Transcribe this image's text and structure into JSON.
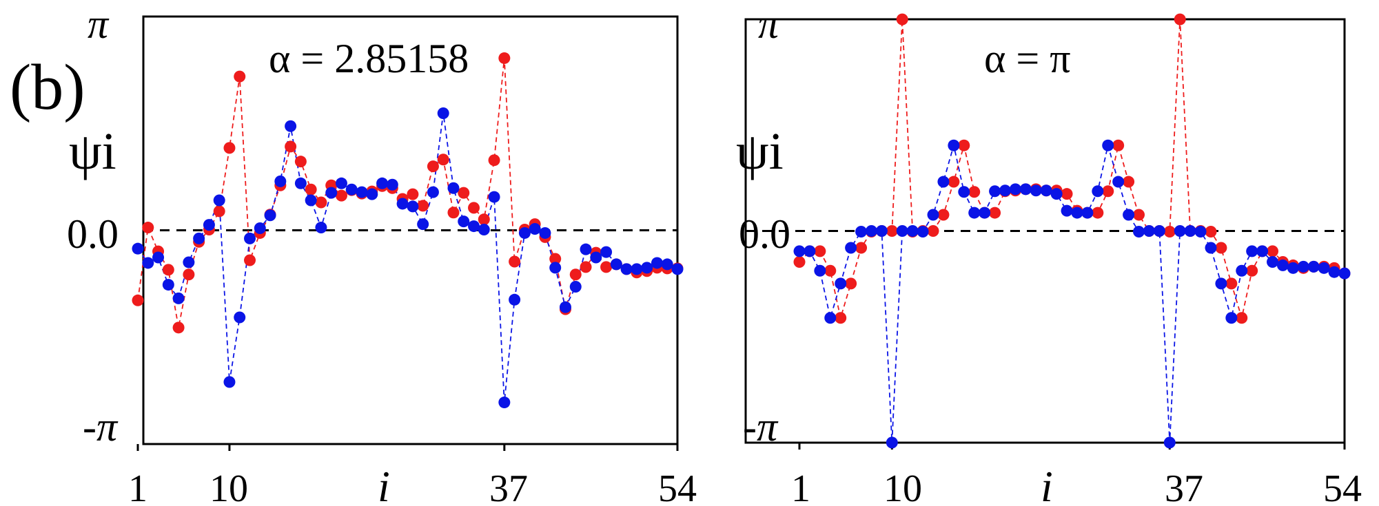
{
  "figure_label": "(b)",
  "colors": {
    "red": "#ee1c1c",
    "blue": "#0a14e6",
    "axis": "#000000",
    "zero_line": "#000000"
  },
  "chart_data": [
    {
      "type": "scatter",
      "panel": "left",
      "title": "α = 2.85158",
      "ylabel": "ψi",
      "xlabel": "i",
      "xlim": [
        1,
        54
      ],
      "ylim": [
        -3.14159,
        3.14159
      ],
      "y_tick_labels": {
        "top": "π",
        "bottom": "-π",
        "zero": "0.0"
      },
      "x_tick_labels": [
        "1",
        "10",
        "37",
        "54"
      ],
      "x_ticks": [
        1,
        10,
        37,
        54
      ],
      "reference_line": {
        "y": 0,
        "style": "dashed"
      },
      "series": [
        {
          "name": "red",
          "color": "#ee1c1c",
          "x": [
            1,
            2,
            3,
            4,
            5,
            6,
            7,
            8,
            9,
            10,
            11,
            12,
            13,
            14,
            15,
            16,
            17,
            18,
            19,
            20,
            21,
            22,
            23,
            24,
            25,
            26,
            27,
            28,
            29,
            30,
            31,
            32,
            33,
            34,
            35,
            36,
            37,
            38,
            39,
            40,
            41,
            42,
            43,
            44,
            45,
            46,
            47,
            48,
            49,
            50,
            51,
            52,
            53,
            54
          ],
          "y": [
            -1.03,
            0.04,
            -0.31,
            -0.58,
            -1.43,
            -0.65,
            -0.17,
            0.01,
            0.28,
            1.21,
            2.26,
            -0.44,
            -0.04,
            0.23,
            0.66,
            1.23,
            1.01,
            0.6,
            0.41,
            0.66,
            0.51,
            0.59,
            0.54,
            0.57,
            0.65,
            0.62,
            0.46,
            0.53,
            0.36,
            0.94,
            1.04,
            0.26,
            0.55,
            0.33,
            0.16,
            1.03,
            2.53,
            -0.46,
            0.01,
            0.09,
            -0.1,
            -0.42,
            -1.16,
            -0.65,
            -0.54,
            -0.33,
            -0.54,
            -0.5,
            -0.57,
            -0.62,
            -0.6,
            -0.55,
            -0.56,
            -0.56
          ]
        },
        {
          "name": "blue",
          "color": "#0a14e6",
          "x": [
            1,
            2,
            3,
            4,
            5,
            6,
            7,
            8,
            9,
            10,
            11,
            12,
            13,
            14,
            15,
            16,
            17,
            18,
            19,
            20,
            21,
            22,
            23,
            24,
            25,
            26,
            27,
            28,
            29,
            30,
            31,
            32,
            33,
            34,
            35,
            36,
            37,
            38,
            39,
            40,
            41,
            42,
            43,
            44,
            45,
            46,
            47,
            48,
            49,
            50,
            51,
            52,
            53,
            54
          ],
          "y": [
            -0.27,
            -0.48,
            -0.4,
            -0.8,
            -1.0,
            -0.47,
            -0.12,
            0.08,
            0.44,
            -2.23,
            -1.28,
            -0.12,
            0.03,
            0.22,
            0.72,
            1.53,
            0.69,
            0.44,
            0.04,
            0.55,
            0.69,
            0.6,
            0.56,
            0.53,
            0.69,
            0.67,
            0.39,
            0.35,
            0.09,
            0.56,
            1.72,
            0.62,
            0.13,
            0.06,
            0.01,
            0.49,
            -2.53,
            -1.02,
            -0.04,
            0.02,
            -0.04,
            -0.55,
            -1.13,
            -0.83,
            -0.28,
            -0.4,
            -0.32,
            -0.5,
            -0.57,
            -0.57,
            -0.55,
            -0.48,
            -0.5,
            -0.57
          ]
        }
      ]
    },
    {
      "type": "scatter",
      "panel": "right",
      "title": "α = π",
      "ylabel": "ψi",
      "xlabel": "i",
      "xlim": [
        1,
        54
      ],
      "ylim": [
        -3.14159,
        3.14159
      ],
      "y_tick_labels": {
        "top": "π",
        "bottom": "-π",
        "zero": "0.0"
      },
      "x_tick_labels": [
        "1",
        "10",
        "37",
        "54"
      ],
      "x_ticks": [
        1,
        10,
        37,
        54
      ],
      "reference_line": {
        "y": 0,
        "style": "dashed"
      },
      "series": [
        {
          "name": "red",
          "color": "#ee1c1c",
          "x": [
            1,
            2,
            3,
            4,
            5,
            6,
            7,
            8,
            9,
            10,
            11,
            12,
            13,
            14,
            15,
            16,
            17,
            18,
            19,
            20,
            21,
            22,
            23,
            24,
            25,
            26,
            27,
            28,
            29,
            30,
            31,
            32,
            33,
            34,
            35,
            36,
            37,
            38,
            39,
            40,
            41,
            42,
            43,
            44,
            45,
            46,
            47,
            48,
            49,
            50,
            51,
            52,
            53,
            54
          ],
          "y": [
            -0.46,
            -0.3,
            -0.3,
            -0.59,
            -1.29,
            -0.78,
            -0.25,
            -0.01,
            0.0,
            0.0,
            3.14,
            -0.01,
            0.0,
            0.0,
            0.24,
            0.73,
            1.27,
            0.58,
            0.27,
            0.27,
            0.59,
            0.6,
            0.62,
            0.62,
            0.6,
            0.6,
            0.55,
            0.3,
            0.27,
            0.27,
            0.59,
            1.27,
            0.73,
            0.24,
            0.0,
            0.0,
            -0.01,
            3.14,
            0.0,
            0.0,
            -0.01,
            -0.25,
            -0.78,
            -1.29,
            -0.59,
            -0.3,
            -0.3,
            -0.46,
            -0.51,
            -0.55,
            -0.53,
            -0.53,
            -0.55,
            -0.63
          ]
        },
        {
          "name": "blue",
          "color": "#0a14e6",
          "x": [
            1,
            2,
            3,
            4,
            5,
            6,
            7,
            8,
            9,
            10,
            11,
            12,
            13,
            14,
            15,
            16,
            17,
            18,
            19,
            20,
            21,
            22,
            23,
            24,
            25,
            26,
            27,
            28,
            29,
            30,
            31,
            32,
            33,
            34,
            35,
            36,
            37,
            38,
            39,
            40,
            41,
            42,
            43,
            44,
            45,
            46,
            47,
            48,
            49,
            50,
            51,
            52,
            53,
            54
          ],
          "y": [
            -0.3,
            -0.3,
            -0.59,
            -1.29,
            -0.78,
            -0.25,
            -0.01,
            0.0,
            0.0,
            -3.14,
            0.0,
            0.0,
            -0.01,
            0.24,
            0.73,
            1.27,
            0.58,
            0.27,
            0.27,
            0.59,
            0.6,
            0.62,
            0.62,
            0.6,
            0.6,
            0.55,
            0.3,
            0.27,
            0.27,
            0.59,
            1.27,
            0.73,
            0.24,
            -0.01,
            0.0,
            0.0,
            -3.14,
            0.0,
            0.0,
            -0.01,
            -0.25,
            -0.78,
            -1.29,
            -0.59,
            -0.3,
            -0.3,
            -0.46,
            -0.51,
            -0.55,
            -0.53,
            -0.53,
            -0.55,
            -0.61,
            -0.63
          ]
        }
      ]
    }
  ]
}
